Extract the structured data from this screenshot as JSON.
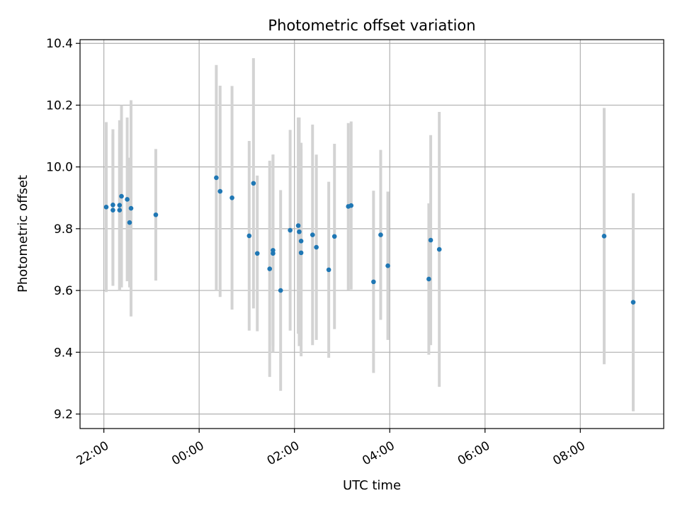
{
  "chart_data": {
    "type": "scatter",
    "title": "Photometric offset variation",
    "xlabel": "UTC time",
    "ylabel": "Photometric offset",
    "x_unit": "hours since 00:00 UTC",
    "xlim": [
      -2.5,
      9.75
    ],
    "ylim": [
      9.153,
      10.412
    ],
    "x_ticks": [
      {
        "value": -2,
        "label": "22:00"
      },
      {
        "value": 0,
        "label": "00:00"
      },
      {
        "value": 2,
        "label": "02:00"
      },
      {
        "value": 4,
        "label": "04:00"
      },
      {
        "value": 6,
        "label": "06:00"
      },
      {
        "value": 8,
        "label": "08:00"
      }
    ],
    "y_ticks": [
      {
        "value": 9.2,
        "label": "9.2"
      },
      {
        "value": 9.4,
        "label": "9.4"
      },
      {
        "value": 9.6,
        "label": "9.6"
      },
      {
        "value": 9.8,
        "label": "9.8"
      },
      {
        "value": 10.0,
        "label": "10.0"
      },
      {
        "value": 10.2,
        "label": "10.2"
      },
      {
        "value": 10.4,
        "label": "10.4"
      }
    ],
    "grid": true,
    "point_color": "#1f77b4",
    "errorbar_color": "#d3d3d3",
    "points": [
      {
        "x": -1.95,
        "y": 9.87,
        "err": 0.275
      },
      {
        "x": -1.81,
        "y": 9.877,
        "err": 0.245
      },
      {
        "x": -1.81,
        "y": 9.86,
        "err": 0.245
      },
      {
        "x": -1.67,
        "y": 9.876,
        "err": 0.275
      },
      {
        "x": -1.67,
        "y": 9.86,
        "err": 0.26
      },
      {
        "x": -1.63,
        "y": 9.905,
        "err": 0.295
      },
      {
        "x": -1.51,
        "y": 9.895,
        "err": 0.265
      },
      {
        "x": -1.46,
        "y": 9.82,
        "err": 0.21
      },
      {
        "x": -1.43,
        "y": 9.866,
        "err": 0.35
      },
      {
        "x": -0.91,
        "y": 9.845,
        "err": 0.213
      },
      {
        "x": 0.36,
        "y": 9.965,
        "err": 0.365
      },
      {
        "x": 0.44,
        "y": 9.921,
        "err": 0.342
      },
      {
        "x": 0.69,
        "y": 9.9,
        "err": 0.362
      },
      {
        "x": 1.05,
        "y": 9.777,
        "err": 0.307
      },
      {
        "x": 1.14,
        "y": 9.947,
        "err": 0.405
      },
      {
        "x": 1.22,
        "y": 9.72,
        "err": 0.252
      },
      {
        "x": 1.48,
        "y": 9.67,
        "err": 0.35
      },
      {
        "x": 1.55,
        "y": 9.73,
        "err": 0.31
      },
      {
        "x": 1.55,
        "y": 9.72,
        "err": 0.32
      },
      {
        "x": 1.71,
        "y": 9.6,
        "err": 0.325
      },
      {
        "x": 1.91,
        "y": 9.795,
        "err": 0.325
      },
      {
        "x": 2.08,
        "y": 9.81,
        "err": 0.35
      },
      {
        "x": 2.1,
        "y": 9.79,
        "err": 0.37
      },
      {
        "x": 2.14,
        "y": 9.76,
        "err": 0.318
      },
      {
        "x": 2.14,
        "y": 9.722,
        "err": 0.335
      },
      {
        "x": 2.38,
        "y": 9.78,
        "err": 0.357
      },
      {
        "x": 2.46,
        "y": 9.74,
        "err": 0.3
      },
      {
        "x": 2.72,
        "y": 9.667,
        "err": 0.285
      },
      {
        "x": 2.84,
        "y": 9.775,
        "err": 0.3
      },
      {
        "x": 3.13,
        "y": 9.872,
        "err": 0.27
      },
      {
        "x": 3.19,
        "y": 9.875,
        "err": 0.272
      },
      {
        "x": 3.66,
        "y": 9.628,
        "err": 0.295
      },
      {
        "x": 3.81,
        "y": 9.78,
        "err": 0.275
      },
      {
        "x": 3.96,
        "y": 9.68,
        "err": 0.24
      },
      {
        "x": 4.82,
        "y": 9.637,
        "err": 0.245
      },
      {
        "x": 4.86,
        "y": 9.763,
        "err": 0.34
      },
      {
        "x": 5.04,
        "y": 9.733,
        "err": 0.445
      },
      {
        "x": 8.5,
        "y": 9.776,
        "err": 0.415
      },
      {
        "x": 9.11,
        "y": 9.562,
        "err": 0.353
      }
    ]
  }
}
